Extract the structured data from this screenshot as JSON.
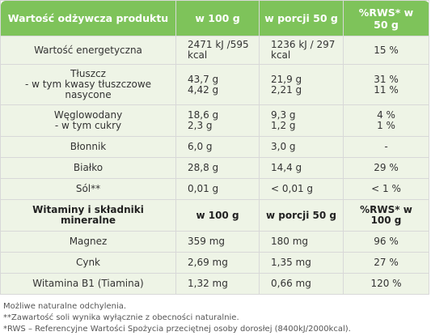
{
  "header": {
    "col1": "Wartość odżywcza produktu",
    "col2": "w 100 g",
    "col3": "w porcji 50 g",
    "col4_line1": "%RWS* w",
    "col4_line2": "50 g"
  },
  "rows": [
    {
      "name": [
        "Wartość energetyczna"
      ],
      "v100": [
        "2471 kJ /595",
        "kcal"
      ],
      "portion": [
        "1236 kJ / 297",
        "kcal"
      ],
      "rws": [
        "15 %"
      ]
    },
    {
      "name": [
        "Tłuszcz",
        "- w tym kwasy tłuszczowe",
        "nasycone"
      ],
      "v100": [
        "43,7 g",
        "4,42 g"
      ],
      "portion": [
        "21,9 g",
        "2,21 g"
      ],
      "rws": [
        "31 %",
        "11 %"
      ]
    },
    {
      "name": [
        "Węglowodany",
        "- w tym cukry"
      ],
      "v100": [
        "18,6 g",
        "2,3 g"
      ],
      "portion": [
        "9,3 g",
        "1,2 g"
      ],
      "rws": [
        "4 %",
        "1 %"
      ]
    },
    {
      "name": [
        "Błonnik"
      ],
      "v100": [
        "6,0 g"
      ],
      "portion": [
        "3,0 g"
      ],
      "rws": [
        "-"
      ]
    },
    {
      "name": [
        "Białko"
      ],
      "v100": [
        "28,8 g"
      ],
      "portion": [
        "14,4 g"
      ],
      "rws": [
        "29 %"
      ]
    },
    {
      "name": [
        "Sól**"
      ],
      "v100": [
        "0,01 g"
      ],
      "portion": [
        "< 0,01 g"
      ],
      "rws": [
        "< 1 %"
      ]
    }
  ],
  "subheader": {
    "col1_line1": "Witaminy i składniki",
    "col1_line2": "mineralne",
    "col2": "w 100 g",
    "col3": "w porcji 50 g",
    "col4_line1": "%RWS* w",
    "col4_line2": "100 g"
  },
  "minerals": [
    {
      "name": "Magnez",
      "v100": "359 mg",
      "portion": "180 mg",
      "rws": "96 %"
    },
    {
      "name": "Cynk",
      "v100": "2,69 mg",
      "portion": "1,35 mg",
      "rws": "27 %"
    },
    {
      "name": "Witamina B1 (Tiamina)",
      "v100": "1,32 mg",
      "portion": "0,66 mg",
      "rws": "120 %"
    }
  ],
  "notes": [
    "Możliwe naturalne odchylenia.",
    "**Zawartość soli wynika wyłącznie z obecności naturalnie.",
    "*RWS – Referencyjne Wartości Spożycia przeciętnej osoby dorosłej (8400kJ/2000kcal)."
  ]
}
